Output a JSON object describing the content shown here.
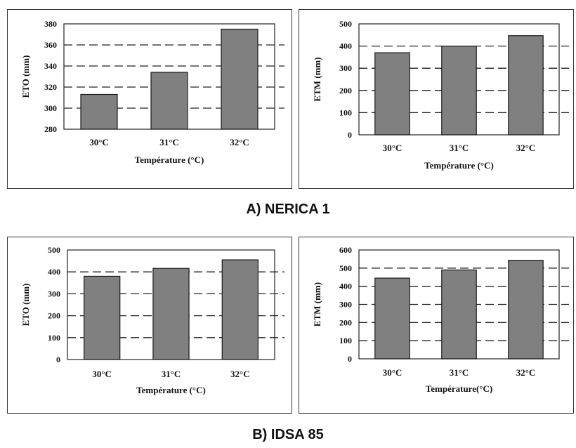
{
  "captions": {
    "a": "A) NERICA 1",
    "b": "B) IDSA 85"
  },
  "bar_color": "#808080",
  "chart_data": [
    {
      "type": "bar",
      "title": "",
      "xlabel": "Température (°C)",
      "ylabel": "ETO (mm)",
      "categories": [
        "30°C",
        "31°C",
        "32°C"
      ],
      "values": [
        313,
        334,
        375
      ],
      "ylim": [
        280,
        380
      ],
      "yticks": [
        280,
        300,
        320,
        340,
        360,
        380
      ],
      "grid": "dashed-horizontal"
    },
    {
      "type": "bar",
      "title": "",
      "xlabel": "Température (°C)",
      "ylabel": "ETM (mm)",
      "categories": [
        "30°C",
        "31°C",
        "32°C"
      ],
      "values": [
        370,
        400,
        447
      ],
      "ylim": [
        0,
        500
      ],
      "yticks": [
        0,
        100,
        200,
        300,
        400,
        500
      ],
      "grid": "dashed-horizontal"
    },
    {
      "type": "bar",
      "title": "",
      "xlabel": "Température (°C)",
      "ylabel": "ETO (mm)",
      "categories": [
        "30°C",
        "31°C",
        "32°C"
      ],
      "values": [
        380,
        416,
        455
      ],
      "ylim": [
        0,
        500
      ],
      "yticks": [
        0,
        100,
        200,
        300,
        400,
        500
      ],
      "grid": "dashed-horizontal"
    },
    {
      "type": "bar",
      "title": "",
      "xlabel": "Température(°C)",
      "ylabel": "ETM (mm)",
      "categories": [
        "30°C",
        "31°C",
        "32°C"
      ],
      "values": [
        445,
        490,
        543
      ],
      "ylim": [
        0,
        600
      ],
      "yticks": [
        0,
        100,
        200,
        300,
        400,
        500,
        600
      ],
      "grid": "dashed-horizontal"
    }
  ]
}
